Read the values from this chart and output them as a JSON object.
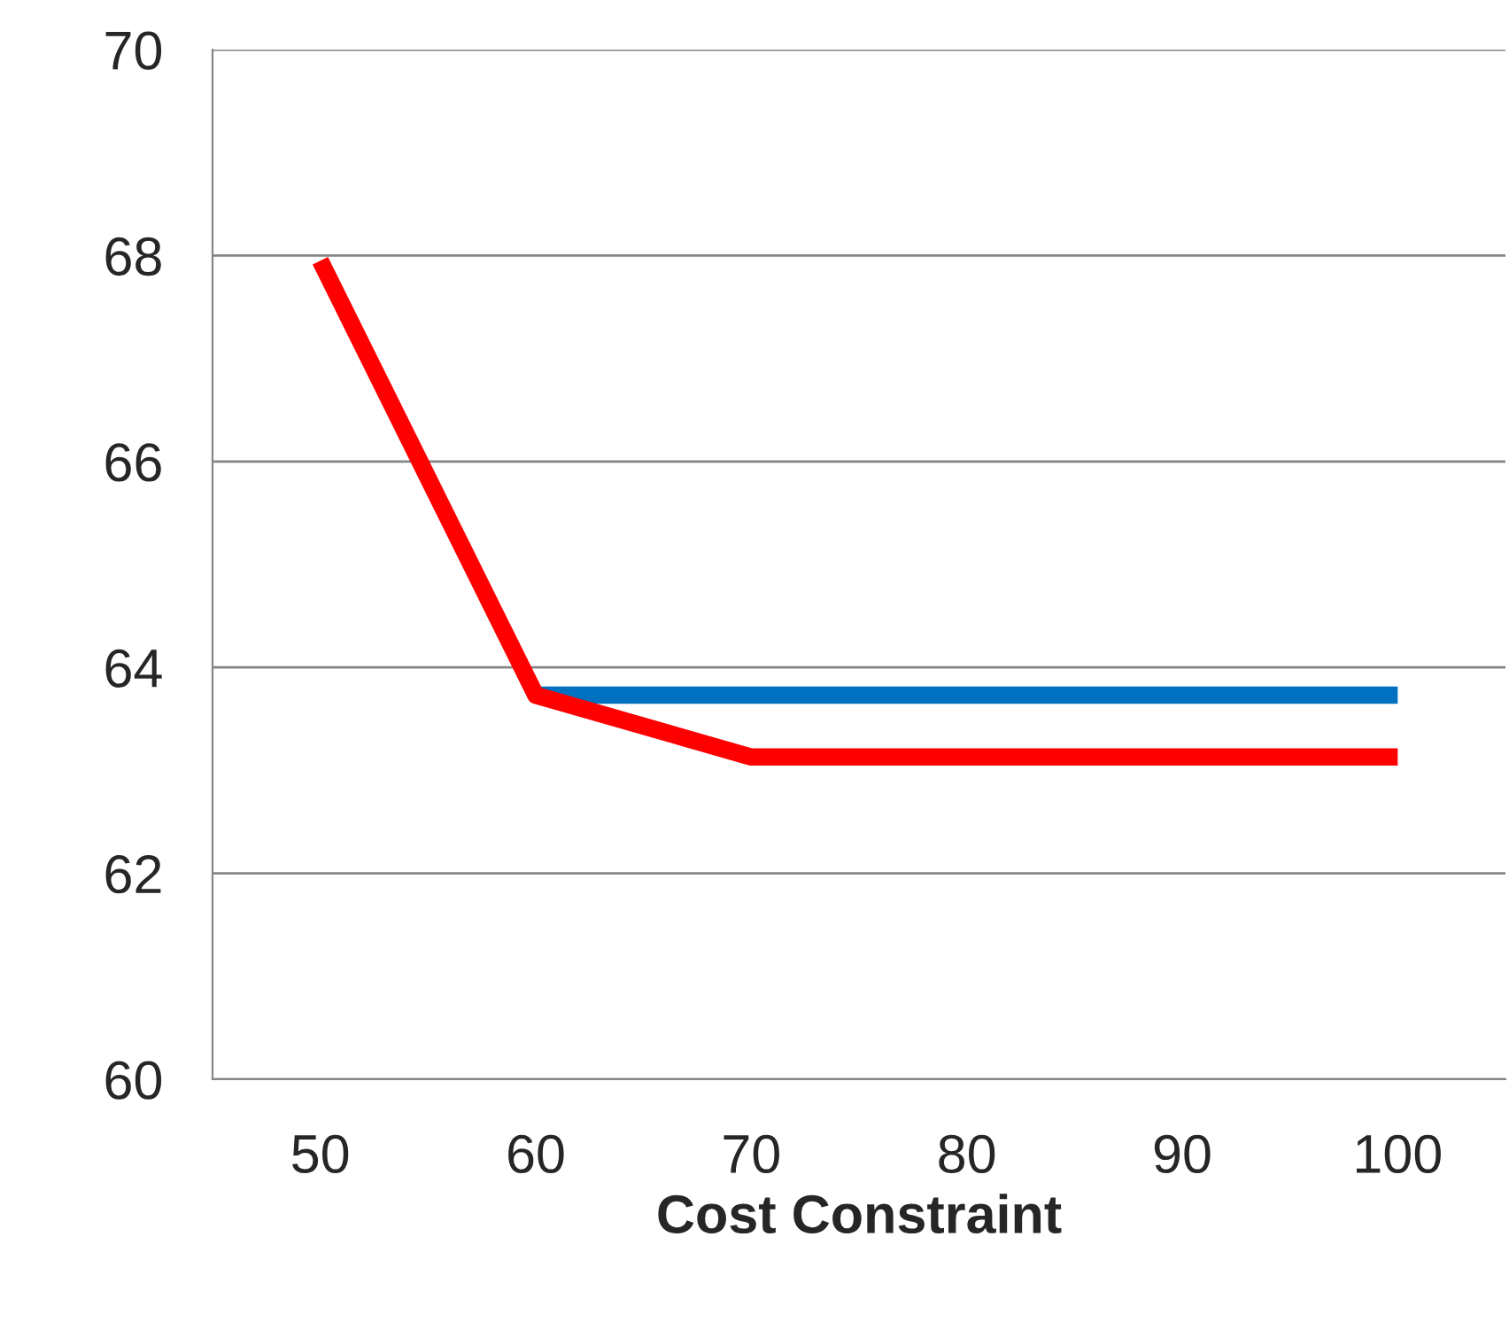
{
  "chart_data": {
    "type": "line",
    "xlabel": "Cost Constraint",
    "categories": [
      "50",
      "60",
      "70",
      "80",
      "90",
      "100"
    ],
    "series": [
      {
        "color": "#0070c0",
        "values": [
          null,
          63.73,
          63.73,
          63.73,
          63.73,
          63.73
        ]
      },
      {
        "color": "#ff0000",
        "values": [
          67.95,
          63.73,
          63.13,
          63.13,
          63.13,
          63.13
        ]
      }
    ],
    "ylim": [
      60,
      70
    ],
    "yticks": [
      60,
      62,
      64,
      66,
      68,
      70
    ],
    "grid": "y",
    "legend": false,
    "marker": "none",
    "line_style": "solid"
  }
}
